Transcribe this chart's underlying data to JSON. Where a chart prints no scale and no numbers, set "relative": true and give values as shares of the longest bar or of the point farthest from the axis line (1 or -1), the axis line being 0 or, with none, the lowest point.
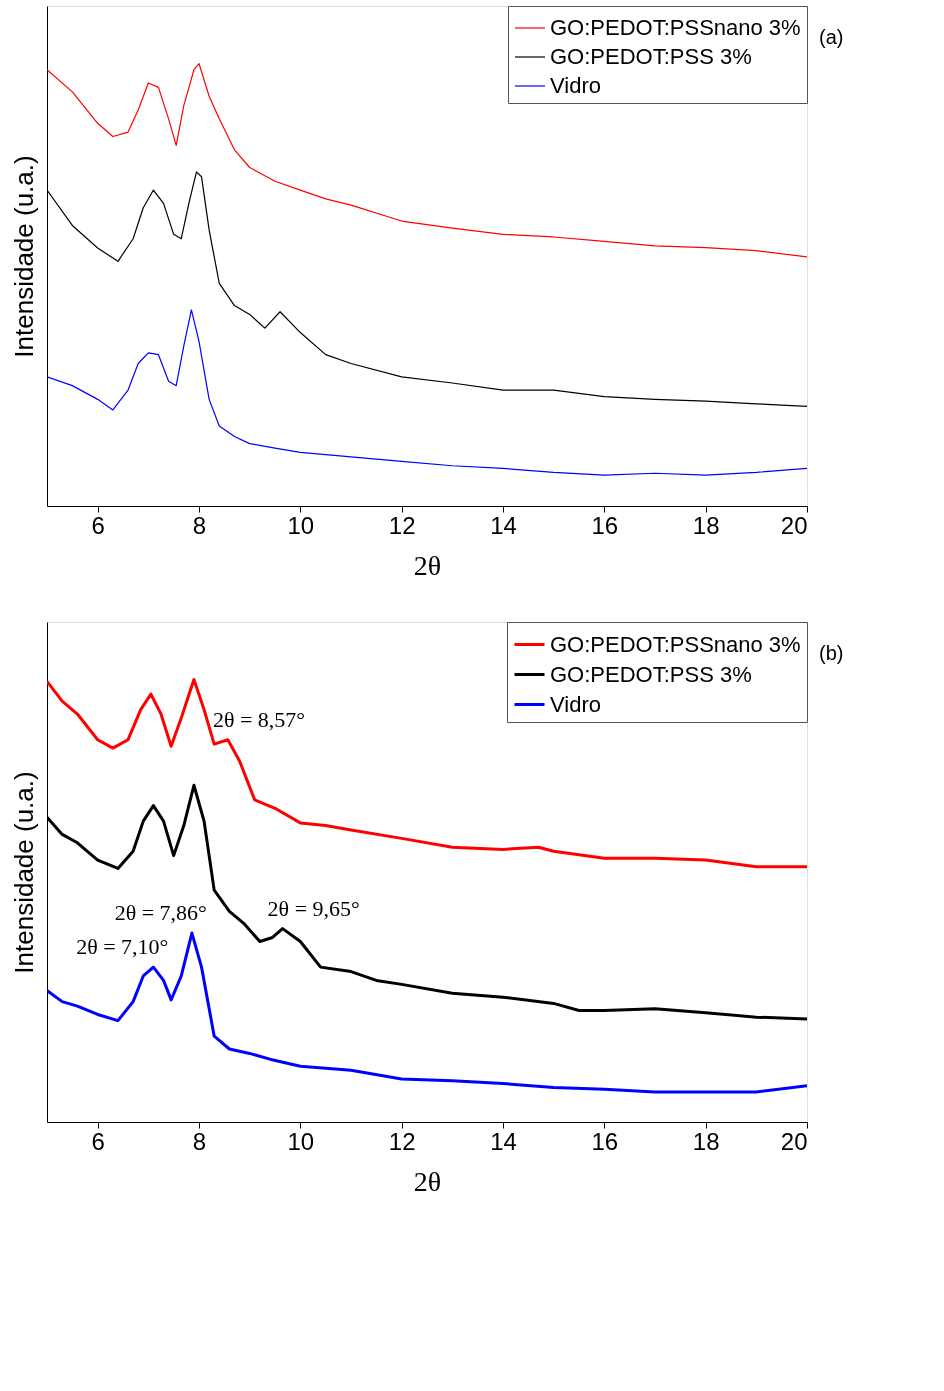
{
  "chart_data": [
    {
      "type": "line",
      "xlabel": "2θ",
      "ylabel": "Intensidade (u.a.)",
      "relative": true,
      "tick_labels": "x",
      "legend": "top right",
      "line_style": "solid",
      "xlim": [
        5,
        20
      ],
      "xticks": [
        6,
        8,
        10,
        12,
        14,
        16,
        18,
        20
      ],
      "annotations": [
        "(a)"
      ],
      "series": [
        {
          "name": "GO:PEDOT:PSSnano 3%",
          "color": "#ff0000",
          "x": [
            5,
            5.5,
            6,
            6.3,
            6.6,
            6.8,
            7.0,
            7.2,
            7.4,
            7.55,
            7.7,
            7.9,
            8.0,
            8.2,
            8.4,
            8.7,
            9,
            9.5,
            10,
            10.5,
            11,
            12,
            13,
            14,
            15,
            16,
            17,
            18,
            19,
            20
          ],
          "values": [
            0.986,
            0.936,
            0.865,
            0.835,
            0.845,
            0.895,
            0.956,
            0.946,
            0.875,
            0.815,
            0.905,
            0.986,
            1.0,
            0.926,
            0.875,
            0.805,
            0.765,
            0.734,
            0.714,
            0.694,
            0.68,
            0.644,
            0.628,
            0.614,
            0.608,
            0.598,
            0.588,
            0.584,
            0.577,
            0.563
          ]
        },
        {
          "name": "GO:PEDOT:PSS 3%",
          "color": "#000000",
          "x": [
            5,
            5.5,
            6,
            6.4,
            6.7,
            6.9,
            7.1,
            7.3,
            7.5,
            7.65,
            7.8,
            7.95,
            8.05,
            8.2,
            8.4,
            8.7,
            9,
            9.3,
            9.6,
            10,
            10.5,
            11,
            12,
            13,
            14,
            15,
            16,
            17,
            18,
            19,
            20
          ],
          "values": [
            0.714,
            0.634,
            0.583,
            0.553,
            0.604,
            0.674,
            0.714,
            0.684,
            0.614,
            0.604,
            0.684,
            0.755,
            0.744,
            0.624,
            0.503,
            0.453,
            0.433,
            0.402,
            0.439,
            0.392,
            0.342,
            0.322,
            0.292,
            0.278,
            0.262,
            0.262,
            0.247,
            0.241,
            0.237,
            0.231,
            0.225
          ]
        },
        {
          "name": "Vidro",
          "color": "#0000ff",
          "x": [
            5,
            5.5,
            6,
            6.3,
            6.6,
            6.8,
            7.0,
            7.2,
            7.4,
            7.55,
            7.7,
            7.85,
            8.0,
            8.2,
            8.4,
            8.7,
            9,
            9.5,
            10,
            11,
            12,
            13,
            14,
            15,
            16,
            17,
            18,
            19,
            20
          ],
          "values": [
            0.292,
            0.272,
            0.241,
            0.217,
            0.262,
            0.322,
            0.346,
            0.342,
            0.282,
            0.272,
            0.362,
            0.443,
            0.372,
            0.241,
            0.181,
            0.157,
            0.141,
            0.131,
            0.121,
            0.111,
            0.101,
            0.091,
            0.085,
            0.076,
            0.07,
            0.074,
            0.07,
            0.076,
            0.085
          ]
        }
      ]
    },
    {
      "type": "line",
      "xlabel": "2θ",
      "ylabel": "Intensidade (u.a.)",
      "relative": true,
      "tick_labels": "x",
      "legend": "top right",
      "line_style": "solid",
      "xlim": [
        5,
        20
      ],
      "xticks": [
        6,
        8,
        10,
        12,
        14,
        16,
        18,
        20
      ],
      "annotations": [
        "(b)",
        {
          "text": "2θ = 8,57°",
          "x": 8.57,
          "y": 0.864
        },
        {
          "text": "2θ = 9,65°",
          "x": 9.65,
          "y": 0.437
        },
        {
          "text": "2θ = 7,86°",
          "x": 7.86,
          "y": 0.427
        },
        {
          "text": "2θ = 7,10°",
          "x": 7.1,
          "y": 0.35
        }
      ],
      "series": [
        {
          "name": "GO:PEDOT:PSSnano 3%",
          "color": "#ff0000",
          "x": [
            5,
            5.3,
            5.6,
            6,
            6.3,
            6.6,
            6.85,
            7.05,
            7.25,
            7.45,
            7.65,
            7.9,
            8.1,
            8.3,
            8.57,
            8.8,
            9.1,
            9.5,
            10,
            10.5,
            11,
            12,
            13,
            14,
            14.7,
            15,
            16,
            17,
            18,
            19,
            20
          ],
          "values": [
            0.996,
            0.951,
            0.922,
            0.864,
            0.845,
            0.864,
            0.932,
            0.967,
            0.922,
            0.849,
            0.913,
            1.0,
            0.932,
            0.854,
            0.864,
            0.816,
            0.728,
            0.709,
            0.676,
            0.67,
            0.66,
            0.641,
            0.621,
            0.616,
            0.621,
            0.612,
            0.596,
            0.596,
            0.592,
            0.577,
            0.577
          ]
        },
        {
          "name": "GO:PEDOT:PSS 3%",
          "color": "#000000",
          "x": [
            5,
            5.3,
            5.6,
            6,
            6.4,
            6.7,
            6.9,
            7.1,
            7.3,
            7.5,
            7.7,
            7.9,
            8.1,
            8.3,
            8.6,
            8.9,
            9.2,
            9.45,
            9.65,
            10,
            10.4,
            11,
            11.5,
            12,
            13,
            14,
            15,
            15.5,
            16,
            17,
            18,
            19,
            20
          ],
          "values": [
            0.689,
            0.65,
            0.631,
            0.592,
            0.573,
            0.612,
            0.68,
            0.715,
            0.68,
            0.602,
            0.67,
            0.761,
            0.68,
            0.524,
            0.476,
            0.447,
            0.408,
            0.417,
            0.437,
            0.408,
            0.35,
            0.34,
            0.32,
            0.311,
            0.291,
            0.282,
            0.268,
            0.252,
            0.252,
            0.256,
            0.247,
            0.237,
            0.233
          ]
        },
        {
          "name": "Vidro",
          "color": "#0000ff",
          "x": [
            5,
            5.3,
            5.6,
            6,
            6.4,
            6.7,
            6.9,
            7.1,
            7.3,
            7.45,
            7.65,
            7.86,
            8.05,
            8.3,
            8.6,
            9,
            9.4,
            10,
            11,
            12,
            13,
            14,
            15,
            16,
            17,
            18,
            19,
            20
          ],
          "values": [
            0.297,
            0.272,
            0.262,
            0.243,
            0.229,
            0.272,
            0.33,
            0.35,
            0.32,
            0.276,
            0.33,
            0.427,
            0.35,
            0.194,
            0.165,
            0.155,
            0.142,
            0.126,
            0.117,
            0.097,
            0.093,
            0.087,
            0.078,
            0.074,
            0.068,
            0.068,
            0.068,
            0.082
          ]
        }
      ]
    }
  ]
}
